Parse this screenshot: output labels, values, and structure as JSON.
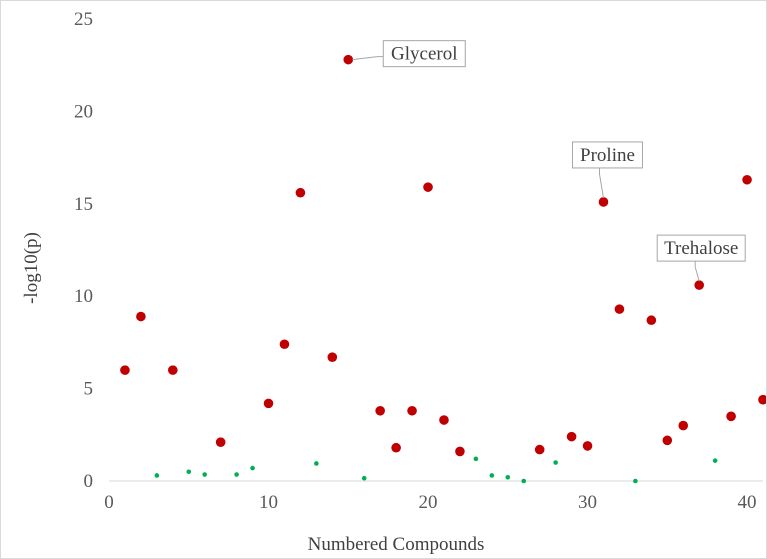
{
  "chart_data": {
    "type": "scatter",
    "title": "",
    "xlabel": "Numbered Compounds",
    "ylabel": "-log10(p)",
    "xlim": [
      0,
      41
    ],
    "ylim": [
      0,
      25
    ],
    "x_ticks": [
      "0",
      "10",
      "20",
      "30",
      "40"
    ],
    "y_ticks": [
      "0",
      "5",
      "10",
      "15",
      "20",
      "25"
    ],
    "grid": false,
    "legend": "none",
    "colors": {
      "significant": "#c00000",
      "not_significant": "#00b050",
      "axis": "#d9d9d9"
    },
    "series": [
      {
        "values": [
          {
            "x": 1,
            "y": 6.0
          },
          {
            "x": 2,
            "y": 8.9
          },
          {
            "x": 4,
            "y": 6.0
          },
          {
            "x": 7,
            "y": 2.1
          },
          {
            "x": 10,
            "y": 4.2
          },
          {
            "x": 11,
            "y": 7.4
          },
          {
            "x": 12,
            "y": 15.6
          },
          {
            "x": 14,
            "y": 6.7
          },
          {
            "x": 15,
            "y": 22.8
          },
          {
            "x": 17,
            "y": 3.8
          },
          {
            "x": 18,
            "y": 1.8
          },
          {
            "x": 19,
            "y": 3.8
          },
          {
            "x": 20,
            "y": 15.9
          },
          {
            "x": 21,
            "y": 3.3
          },
          {
            "x": 22,
            "y": 1.6
          },
          {
            "x": 27,
            "y": 1.7
          },
          {
            "x": 29,
            "y": 2.4
          },
          {
            "x": 30,
            "y": 1.9
          },
          {
            "x": 31,
            "y": 15.1
          },
          {
            "x": 32,
            "y": 9.3
          },
          {
            "x": 34,
            "y": 8.7
          },
          {
            "x": 35,
            "y": 2.2
          },
          {
            "x": 36,
            "y": 3.0
          },
          {
            "x": 37,
            "y": 10.6
          },
          {
            "x": 39,
            "y": 3.5
          },
          {
            "x": 40,
            "y": 16.3
          },
          {
            "x": 41,
            "y": 4.4
          }
        ]
      },
      {
        "values": [
          {
            "x": 3,
            "y": 0.3
          },
          {
            "x": 5,
            "y": 0.5
          },
          {
            "x": 6,
            "y": 0.35
          },
          {
            "x": 8,
            "y": 0.35
          },
          {
            "x": 9,
            "y": 0.7
          },
          {
            "x": 13,
            "y": 0.95
          },
          {
            "x": 16,
            "y": 0.15
          },
          {
            "x": 23,
            "y": 1.2
          },
          {
            "x": 24,
            "y": 0.3
          },
          {
            "x": 25,
            "y": 0.2
          },
          {
            "x": 26,
            "y": 0.0
          },
          {
            "x": 28,
            "y": 1.0
          },
          {
            "x": 33,
            "y": 0.0
          },
          {
            "x": 38,
            "y": 1.1
          }
        ]
      }
    ],
    "annotations": [
      {
        "text": "Glycerol",
        "x": 15,
        "y": 22.8
      },
      {
        "text": "Proline",
        "x": 31,
        "y": 15.1
      },
      {
        "text": "Trehalose",
        "x": 37,
        "y": 10.6
      }
    ]
  }
}
